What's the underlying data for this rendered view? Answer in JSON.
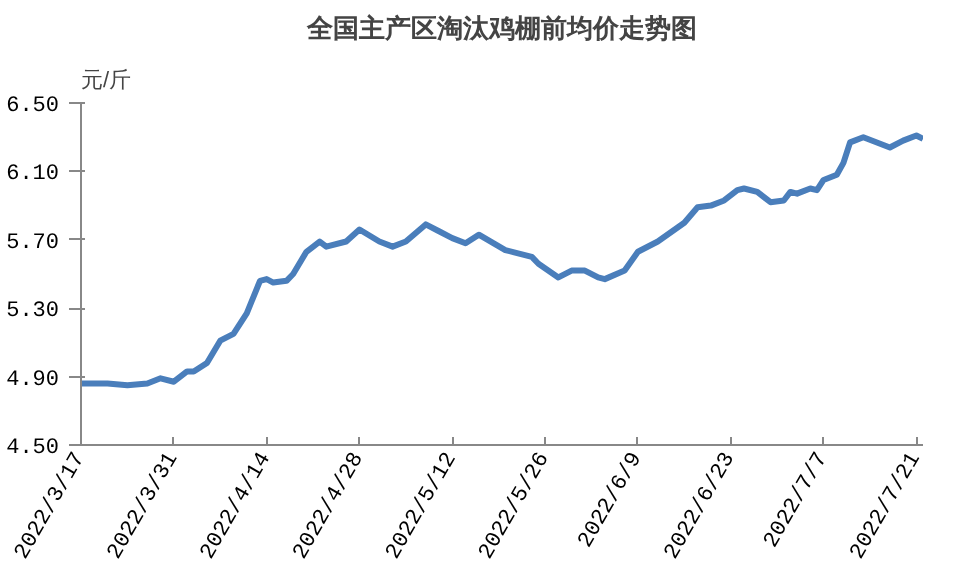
{
  "chart_data": {
    "type": "line",
    "title": "全国主产区淘汰鸡棚前均价走势图",
    "ylabel": "元/斤",
    "x": [
      "2022-03-17",
      "2022-03-21",
      "2022-03-24",
      "2022-03-27",
      "2022-03-29",
      "2022-03-31",
      "2022-04-02",
      "2022-04-03",
      "2022-04-05",
      "2022-04-07",
      "2022-04-09",
      "2022-04-11",
      "2022-04-13",
      "2022-04-14",
      "2022-04-15",
      "2022-04-17",
      "2022-04-18",
      "2022-04-20",
      "2022-04-22",
      "2022-04-23",
      "2022-04-26",
      "2022-04-28",
      "2022-05-01",
      "2022-05-03",
      "2022-05-05",
      "2022-05-08",
      "2022-05-10",
      "2022-05-12",
      "2022-05-14",
      "2022-05-16",
      "2022-05-20",
      "2022-05-24",
      "2022-05-25",
      "2022-05-28",
      "2022-05-30",
      "2022-06-01",
      "2022-06-03",
      "2022-06-04",
      "2022-06-07",
      "2022-06-09",
      "2022-06-12",
      "2022-06-16",
      "2022-06-18",
      "2022-06-20",
      "2022-06-22",
      "2022-06-24",
      "2022-06-25",
      "2022-06-27",
      "2022-06-29",
      "2022-07-01",
      "2022-07-02",
      "2022-07-03",
      "2022-07-05",
      "2022-07-06",
      "2022-07-07",
      "2022-07-09",
      "2022-07-10",
      "2022-07-11",
      "2022-07-13",
      "2022-07-17",
      "2022-07-19",
      "2022-07-21",
      "2022-07-22"
    ],
    "series": [
      {
        "color": "#4a7ebb",
        "values": [
          4.86,
          4.86,
          4.85,
          4.86,
          4.89,
          4.87,
          4.93,
          4.93,
          4.98,
          5.11,
          5.15,
          5.27,
          5.46,
          5.47,
          5.45,
          5.46,
          5.5,
          5.63,
          5.69,
          5.66,
          5.69,
          5.76,
          5.69,
          5.66,
          5.69,
          5.79,
          5.75,
          5.71,
          5.68,
          5.73,
          5.64,
          5.6,
          5.56,
          5.48,
          5.52,
          5.52,
          5.48,
          5.47,
          5.52,
          5.63,
          5.69,
          5.8,
          5.89,
          5.9,
          5.93,
          5.99,
          6.0,
          5.98,
          5.92,
          5.93,
          5.98,
          5.97,
          6.0,
          5.99,
          6.05,
          6.08,
          6.15,
          6.27,
          6.3,
          6.24,
          6.28,
          6.31,
          6.29
        ]
      }
    ],
    "xlim": [
      "2022-03-17",
      "2022-07-22"
    ],
    "xticks": [
      {
        "value": "2022-03-17",
        "label": "2022/3/17"
      },
      {
        "value": "2022-03-31",
        "label": "2022/3/31"
      },
      {
        "value": "2022-04-14",
        "label": "2022/4/14"
      },
      {
        "value": "2022-04-28",
        "label": "2022/4/28"
      },
      {
        "value": "2022-05-12",
        "label": "2022/5/12"
      },
      {
        "value": "2022-05-26",
        "label": "2022/5/26"
      },
      {
        "value": "2022-06-09",
        "label": "2022/6/9"
      },
      {
        "value": "2022-06-23",
        "label": "2022/6/23"
      },
      {
        "value": "2022-07-07",
        "label": "2022/7/7"
      },
      {
        "value": "2022-07-21",
        "label": "2022/7/21"
      }
    ],
    "ylim": [
      4.5,
      6.5
    ],
    "yticks": [
      {
        "value": 4.5,
        "label": "4.50"
      },
      {
        "value": 4.9,
        "label": "4.90"
      },
      {
        "value": 5.3,
        "label": "5.30"
      },
      {
        "value": 5.7,
        "label": "5.70"
      },
      {
        "value": 6.1,
        "label": "6.10"
      },
      {
        "value": 6.5,
        "label": "6.50"
      }
    ],
    "grid": false,
    "marker": "none",
    "line_style": "solid"
  }
}
